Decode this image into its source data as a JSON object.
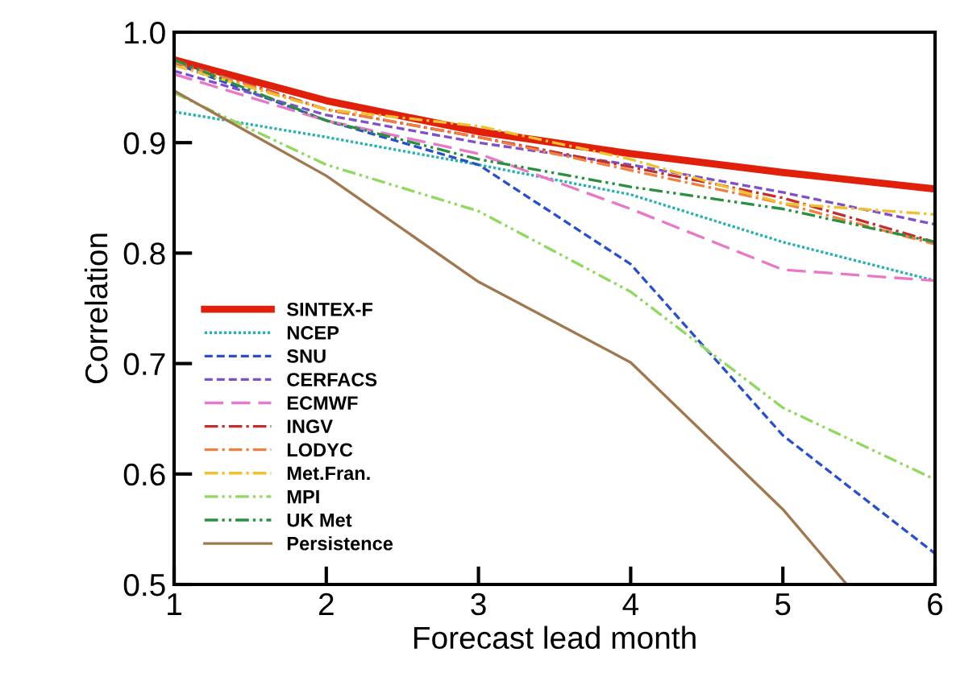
{
  "chart_data": {
    "type": "line",
    "xlabel": "Forecast lead month",
    "ylabel": "Correlation",
    "x": [
      1,
      2,
      3,
      4,
      5,
      6
    ],
    "xlim": [
      1,
      6
    ],
    "xticks": [
      1,
      2,
      3,
      4,
      5,
      6
    ],
    "ylim": [
      0.5,
      1.0
    ],
    "yticks": [
      0.5,
      0.6,
      0.7,
      0.8,
      0.9,
      {
        "value": 1.0,
        "label": "1.0"
      }
    ],
    "grid": false,
    "legend": "bottom left",
    "marker": "none",
    "series": [
      {
        "name": "SINTEX-F",
        "color": "#e0200a",
        "line_style": "solid",
        "values": [
          0.975,
          0.938,
          0.91,
          0.89,
          0.873,
          0.858
        ]
      },
      {
        "name": "NCEP",
        "color": "#2ab0b0",
        "line_style": "dotted",
        "values": [
          0.928,
          0.905,
          0.88,
          0.853,
          0.81,
          0.775
        ]
      },
      {
        "name": "SNU",
        "color": "#2a50c8",
        "line_style": "dashed",
        "values": [
          0.972,
          0.92,
          0.88,
          0.79,
          0.635,
          0.528
        ]
      },
      {
        "name": "CERFACS",
        "color": "#8050c8",
        "line_style": "dashed",
        "values": [
          0.965,
          0.925,
          0.9,
          0.88,
          0.855,
          0.826
        ]
      },
      {
        "name": "ECMWF",
        "color": "#e878c8",
        "line_style": "longdash",
        "values": [
          0.962,
          0.92,
          0.89,
          0.84,
          0.785,
          0.775
        ]
      },
      {
        "name": "INGV",
        "color": "#c03030",
        "line_style": "dashdot",
        "values": [
          0.975,
          0.93,
          0.905,
          0.878,
          0.85,
          0.81
        ]
      },
      {
        "name": "LODYC",
        "color": "#f08040",
        "line_style": "dashdot",
        "values": [
          0.973,
          0.93,
          0.905,
          0.875,
          0.845,
          0.808
        ]
      },
      {
        "name": "Met.Fran.",
        "color": "#f0c030",
        "line_style": "dashdot",
        "values": [
          0.97,
          0.93,
          0.915,
          0.885,
          0.845,
          0.835
        ]
      },
      {
        "name": "MPI",
        "color": "#90d860",
        "line_style": "dashdotdot",
        "values": [
          0.945,
          0.88,
          0.838,
          0.765,
          0.66,
          0.595
        ]
      },
      {
        "name": "UK Met",
        "color": "#2a9040",
        "line_style": "dashdotdot",
        "values": [
          0.975,
          0.92,
          0.885,
          0.86,
          0.84,
          0.81
        ]
      },
      {
        "name": "Persistence",
        "color": "#a07850",
        "line_style": "solid",
        "x": [
          1,
          2,
          3,
          4,
          5,
          5.42
        ],
        "values": [
          0.947,
          0.87,
          0.774,
          0.701,
          0.568,
          0.5
        ]
      }
    ]
  }
}
